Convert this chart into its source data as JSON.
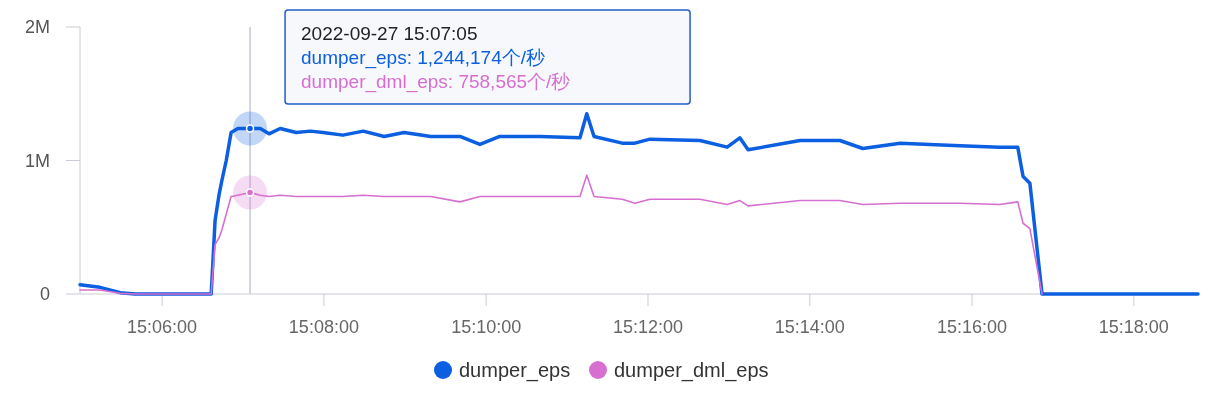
{
  "chart_data": {
    "type": "line",
    "x": [
      15.0831,
      15.0872,
      15.0914,
      15.0944,
      15.1101,
      15.1109,
      15.1117,
      15.1123,
      15.1132,
      15.1142,
      15.1156,
      15.1181,
      15.1202,
      15.122,
      15.1243,
      15.1276,
      15.1305,
      15.1331,
      15.1372,
      15.1414,
      15.1457,
      15.1498,
      15.1553,
      15.1613,
      15.1654,
      15.1695,
      15.1778,
      15.186,
      15.1874,
      15.1889,
      15.1947,
      15.1973,
      15.2004,
      15.2107,
      15.2163,
      15.2189,
      15.2206,
      15.2313,
      15.2395,
      15.2442,
      15.2519,
      15.2642,
      15.2724,
      15.2761,
      15.2772,
      15.2786,
      15.2811,
      15.3132
    ],
    "series": [
      {
        "name": "dumper_eps",
        "color": "#0b5fe0",
        "values": [
          70000,
          50000,
          10000,
          0,
          0,
          550000,
          740000,
          850000,
          1000000,
          1210000,
          1240000,
          1240000,
          1240000,
          1200000,
          1240000,
          1210000,
          1220000,
          1210000,
          1190000,
          1220000,
          1180000,
          1210000,
          1180000,
          1180000,
          1120000,
          1180000,
          1180000,
          1170000,
          1350000,
          1180000,
          1130000,
          1130000,
          1160000,
          1150000,
          1100000,
          1170000,
          1080000,
          1150000,
          1150000,
          1090000,
          1130000,
          1110000,
          1100000,
          1100000,
          880000,
          830000,
          0,
          0
        ]
      },
      {
        "name": "dumper_dml_eps",
        "color": "#d76fd0",
        "values": [
          30000,
          30000,
          5000,
          0,
          0,
          370000,
          420000,
          480000,
          600000,
          730000,
          740000,
          760000,
          740000,
          730000,
          740000,
          730000,
          730000,
          730000,
          730000,
          740000,
          730000,
          730000,
          730000,
          690000,
          730000,
          730000,
          730000,
          730000,
          890000,
          730000,
          710000,
          680000,
          710000,
          710000,
          670000,
          700000,
          660000,
          700000,
          700000,
          670000,
          680000,
          680000,
          670000,
          690000,
          530000,
          490000,
          0,
          null
        ]
      }
    ],
    "xlim": [
      15.0831,
      15.3132
    ],
    "xticks": [
      {
        "value": 15.1,
        "label": "15:06:00"
      },
      {
        "value": 15.1333,
        "label": "15:08:00"
      },
      {
        "value": 15.1667,
        "label": "15:10:00"
      },
      {
        "value": 15.2,
        "label": "15:12:00"
      },
      {
        "value": 15.2333,
        "label": "15:14:00"
      },
      {
        "value": 15.2667,
        "label": "15:16:00"
      },
      {
        "value": 15.3,
        "label": "15:18:00"
      }
    ],
    "ylim": [
      0,
      2000000
    ],
    "yticks": [
      0,
      {
        "value": 1000000,
        "label": "1M"
      },
      {
        "value": 2000000,
        "label": "2M"
      }
    ],
    "ref_lines": [
      {
        "axis": "x",
        "value": 15.1181,
        "color": "#c4c8d4"
      }
    ],
    "annotations": [
      "2022-09-27 15:07:05",
      "dumper_eps: 1,244,174个/秒",
      "dumper_dml_eps: 758,565个/秒"
    ],
    "legend": "bottom",
    "grid": false,
    "marker": "none",
    "line_style": "solid"
  }
}
